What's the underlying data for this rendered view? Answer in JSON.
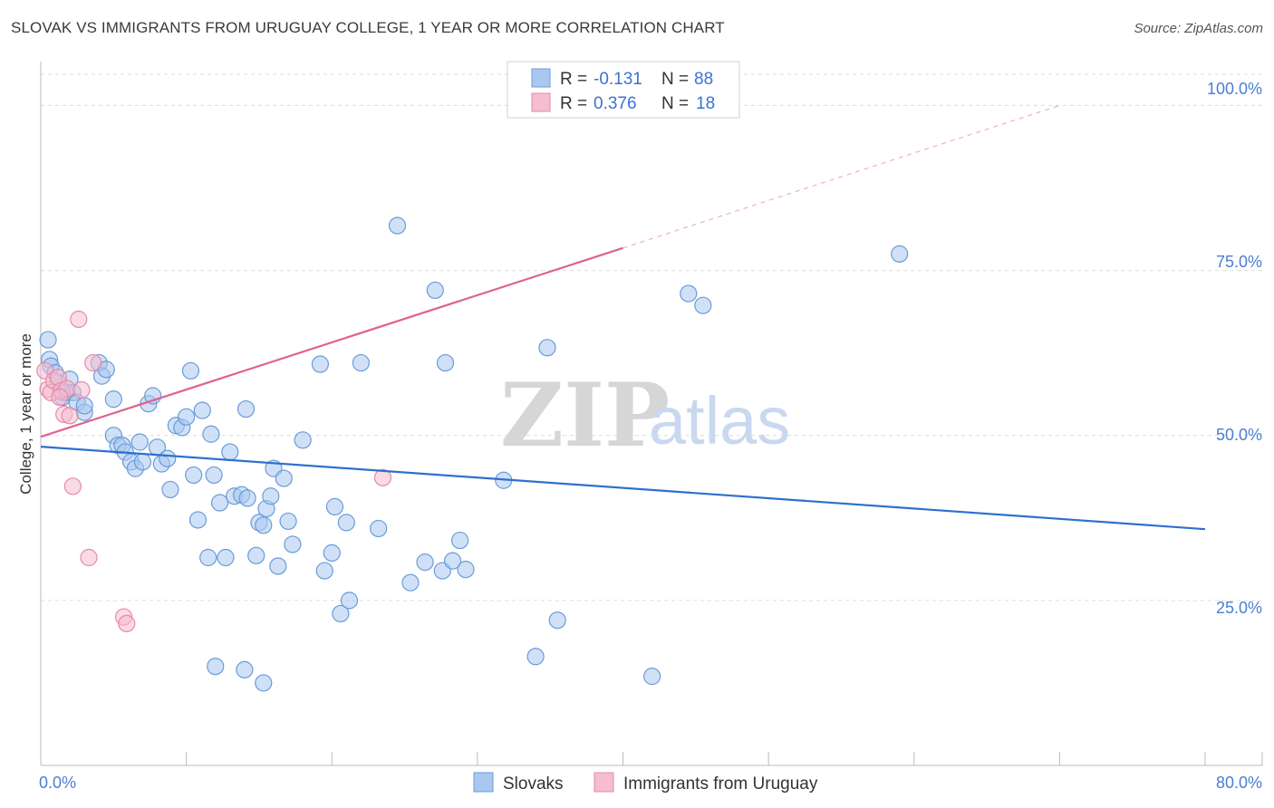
{
  "header": {
    "title": "SLOVAK VS IMMIGRANTS FROM URUGUAY COLLEGE, 1 YEAR OR MORE CORRELATION CHART",
    "source": "Source: ZipAtlas.com"
  },
  "watermark": {
    "zip": "ZIP",
    "atlas": "atlas"
  },
  "colors": {
    "slovaks_fill": "#a9c8f0",
    "slovaks_stroke": "#6a9bd8",
    "slovaks_line": "#2f6fcf",
    "uruguay_fill": "#f6bcd0",
    "uruguay_stroke": "#e58aa8",
    "uruguay_line": "#e0628f",
    "grid": "#dcdcdc",
    "tick_text": "#4a7fd0"
  },
  "legend": {
    "rows": [
      {
        "r_label": "R =",
        "r_value": "-0.131",
        "n_label": "N =",
        "n_value": "88"
      },
      {
        "r_label": "R =",
        "r_value": "0.376",
        "n_label": "N =",
        "n_value": "18"
      }
    ]
  },
  "chart_data": {
    "type": "scatter",
    "title": "SLOVAK VS IMMIGRANTS FROM URUGUAY COLLEGE, 1 YEAR OR MORE CORRELATION CHART",
    "xlabel": "",
    "ylabel": "College, 1 year or more",
    "xlim": [
      0,
      80
    ],
    "ylim": [
      0,
      105
    ],
    "x_tick_labels": [
      "0.0%",
      "80.0%"
    ],
    "y_ticks": [
      25,
      50,
      75,
      100
    ],
    "y_tick_labels": [
      "25.0%",
      "50.0%",
      "75.0%",
      "100.0%"
    ],
    "grid": true,
    "legend_position": "top-center",
    "series": [
      {
        "name": "Slovaks",
        "r": -0.131,
        "n": 88,
        "trend": {
          "x": [
            0,
            80
          ],
          "y": [
            48.3,
            35.8
          ]
        },
        "points": [
          [
            0.5,
            64.5
          ],
          [
            0.6,
            61.5
          ],
          [
            0.7,
            60.5
          ],
          [
            1.0,
            59.5
          ],
          [
            1.2,
            58.0
          ],
          [
            1.5,
            56.5
          ],
          [
            1.5,
            55.8
          ],
          [
            1.8,
            56.5
          ],
          [
            2.0,
            58.5
          ],
          [
            2.2,
            56.5
          ],
          [
            2.5,
            55.0
          ],
          [
            3.0,
            53.5
          ],
          [
            3.0,
            54.5
          ],
          [
            4.0,
            61.0
          ],
          [
            4.2,
            59.0
          ],
          [
            4.5,
            60.0
          ],
          [
            5.0,
            55.5
          ],
          [
            5.0,
            50.0
          ],
          [
            5.3,
            48.5
          ],
          [
            5.6,
            48.5
          ],
          [
            5.8,
            47.5
          ],
          [
            6.2,
            46.0
          ],
          [
            6.5,
            45.0
          ],
          [
            6.8,
            49.0
          ],
          [
            7.0,
            46.0
          ],
          [
            7.4,
            54.8
          ],
          [
            7.7,
            56.0
          ],
          [
            8.0,
            48.2
          ],
          [
            8.3,
            45.7
          ],
          [
            8.7,
            46.5
          ],
          [
            8.9,
            41.8
          ],
          [
            9.3,
            51.5
          ],
          [
            9.7,
            51.2
          ],
          [
            10.0,
            52.8
          ],
          [
            10.3,
            59.8
          ],
          [
            10.5,
            44.0
          ],
          [
            10.8,
            37.2
          ],
          [
            11.1,
            53.8
          ],
          [
            11.5,
            31.5
          ],
          [
            11.7,
            50.2
          ],
          [
            11.9,
            44.0
          ],
          [
            12.3,
            39.8
          ],
          [
            12.7,
            31.5
          ],
          [
            13.0,
            47.5
          ],
          [
            13.3,
            40.8
          ],
          [
            13.8,
            41.0
          ],
          [
            14.1,
            54.0
          ],
          [
            14.2,
            40.5
          ],
          [
            14.8,
            31.8
          ],
          [
            15.0,
            36.8
          ],
          [
            15.3,
            36.4
          ],
          [
            15.5,
            38.9
          ],
          [
            15.8,
            40.8
          ],
          [
            16.0,
            45.0
          ],
          [
            16.3,
            30.2
          ],
          [
            16.7,
            43.5
          ],
          [
            17.0,
            37.0
          ],
          [
            17.3,
            33.5
          ],
          [
            18.0,
            49.3
          ],
          [
            19.2,
            60.8
          ],
          [
            19.5,
            29.5
          ],
          [
            20.0,
            32.2
          ],
          [
            20.2,
            39.2
          ],
          [
            20.6,
            23.0
          ],
          [
            21.0,
            36.8
          ],
          [
            21.2,
            25.0
          ],
          [
            22.0,
            61.0
          ],
          [
            23.2,
            35.9
          ],
          [
            24.5,
            81.8
          ],
          [
            25.4,
            27.7
          ],
          [
            26.4,
            30.8
          ],
          [
            27.1,
            72.0
          ],
          [
            27.6,
            29.5
          ],
          [
            27.8,
            61.0
          ],
          [
            28.3,
            31.0
          ],
          [
            28.8,
            34.1
          ],
          [
            29.2,
            29.7
          ],
          [
            31.8,
            43.2
          ],
          [
            34.0,
            16.5
          ],
          [
            34.8,
            63.3
          ],
          [
            35.5,
            22.0
          ],
          [
            42.0,
            13.5
          ],
          [
            44.5,
            71.5
          ],
          [
            45.5,
            69.7
          ],
          [
            59.0,
            77.5
          ],
          [
            12.0,
            15.0
          ],
          [
            14.0,
            14.5
          ],
          [
            15.3,
            12.5
          ]
        ]
      },
      {
        "name": "Immigrants from Uruguay",
        "r": 0.376,
        "n": 18,
        "trend": {
          "x": [
            0,
            40
          ],
          "y": [
            49.8,
            78.4
          ]
        },
        "trend_extended": {
          "x": [
            40,
            70
          ],
          "y": [
            78.4,
            100
          ]
        },
        "points": [
          [
            0.3,
            59.8
          ],
          [
            0.5,
            57.0
          ],
          [
            0.7,
            56.5
          ],
          [
            0.9,
            58.3
          ],
          [
            1.2,
            58.8
          ],
          [
            1.4,
            56.8
          ],
          [
            1.6,
            53.2
          ],
          [
            1.8,
            57.1
          ],
          [
            2.0,
            53.0
          ],
          [
            2.2,
            42.3
          ],
          [
            2.6,
            67.6
          ],
          [
            3.3,
            31.5
          ],
          [
            3.6,
            61.0
          ],
          [
            5.7,
            22.5
          ],
          [
            5.9,
            21.5
          ],
          [
            1.3,
            55.8
          ],
          [
            2.8,
            56.9
          ],
          [
            23.5,
            43.6
          ]
        ]
      }
    ]
  },
  "axis_title": "College, 1 year or more",
  "bottom_legend": {
    "items": [
      "Slovaks",
      "Immigrants from Uruguay"
    ]
  }
}
